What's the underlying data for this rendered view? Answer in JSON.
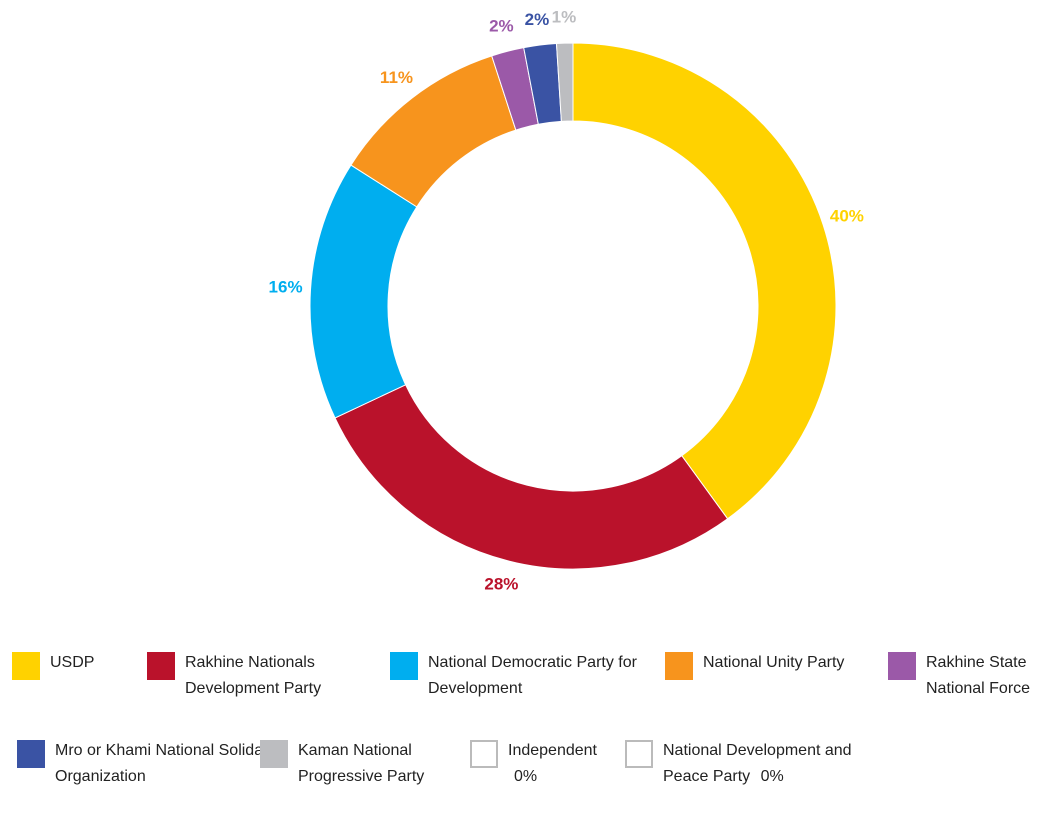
{
  "chart_data": {
    "type": "donut",
    "categories": [
      "USDP",
      "Rakhine Nationals Development Party",
      "National Democratic Party for Development",
      "National Unity Party",
      "Rakhine State National Force",
      "Mro or Khami National Solidarity Organization",
      "Kaman National Progressive Party",
      "Independent",
      "National Development and Peace Party"
    ],
    "values": [
      40,
      28,
      16,
      11,
      2,
      2,
      1,
      0,
      0
    ],
    "value_labels": [
      "40%",
      "28%",
      "16%",
      "11%",
      "2%",
      "2%",
      "1%",
      "0%",
      "0%"
    ],
    "colors": [
      "#FFD200",
      "#BA122B",
      "#00AEEF",
      "#F7941D",
      "#9B59A8",
      "#3A53A4",
      "#BCBDC0",
      "#FFFFFF",
      "#FFFFFF"
    ]
  }
}
